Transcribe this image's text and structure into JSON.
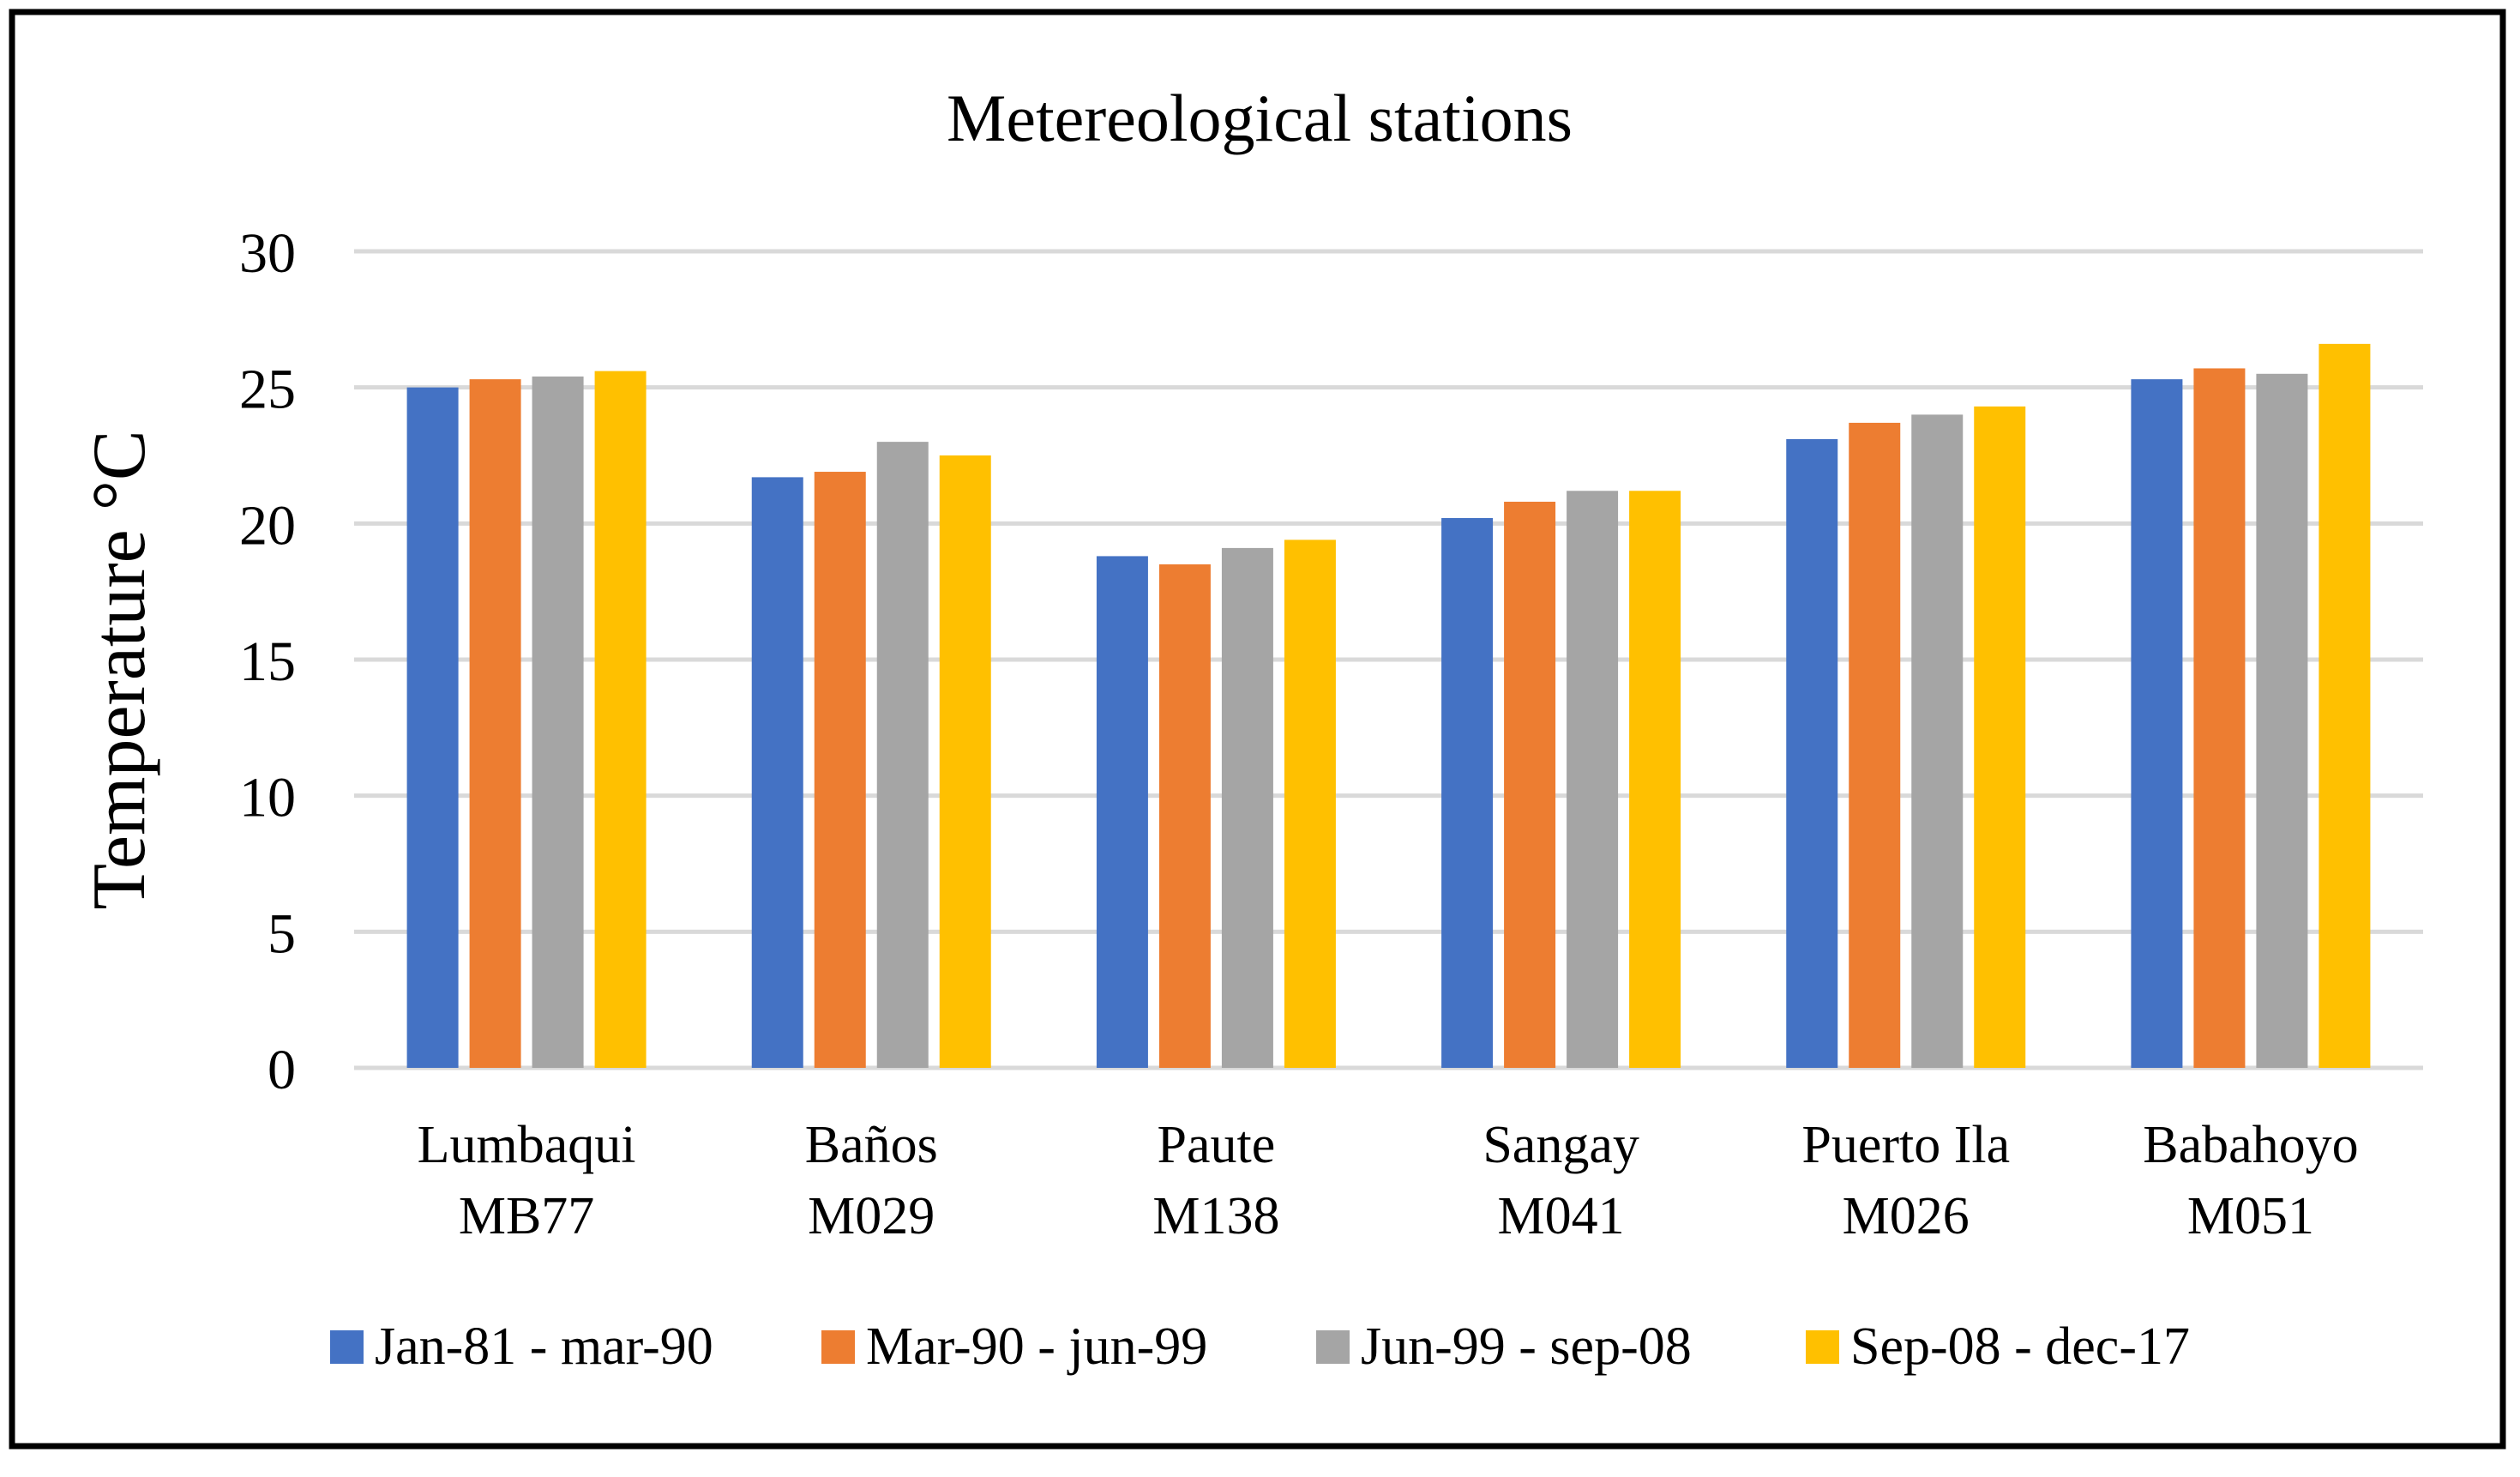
{
  "chart_data": {
    "type": "bar",
    "title": "Metereological stations",
    "xlabel": "",
    "ylabel": "Temperature °C",
    "ylim": [
      0,
      30
    ],
    "yticks": [
      0,
      5,
      10,
      15,
      20,
      25,
      30
    ],
    "grid": true,
    "legend_position": "bottom",
    "categories": [
      {
        "line1": "Lumbaqui",
        "line2": "MB77"
      },
      {
        "line1": "Baños",
        "line2": "M029"
      },
      {
        "line1": "Paute",
        "line2": "M138"
      },
      {
        "line1": "Sangay",
        "line2": "M041"
      },
      {
        "line1": "Puerto Ila",
        "line2": "M026"
      },
      {
        "line1": "Babahoyo",
        "line2": "M051"
      }
    ],
    "series": [
      {
        "name": "Jan-81 - mar-90",
        "color": "#4472C4",
        "values": [
          25.0,
          21.7,
          18.8,
          20.2,
          23.1,
          25.3
        ]
      },
      {
        "name": "Mar-90 - jun-99",
        "color": "#ED7D31",
        "values": [
          25.3,
          21.9,
          18.5,
          20.8,
          23.7,
          25.7
        ]
      },
      {
        "name": "Jun-99 - sep-08",
        "color": "#A5A5A5",
        "values": [
          25.4,
          23.0,
          19.1,
          21.2,
          24.0,
          25.5
        ]
      },
      {
        "name": "Sep-08 - dec-17",
        "color": "#FFC000",
        "values": [
          25.6,
          22.5,
          19.4,
          21.2,
          24.3,
          26.6
        ]
      }
    ]
  },
  "colors": {
    "gridline": "#D9D9D9",
    "frame": "#000000"
  }
}
